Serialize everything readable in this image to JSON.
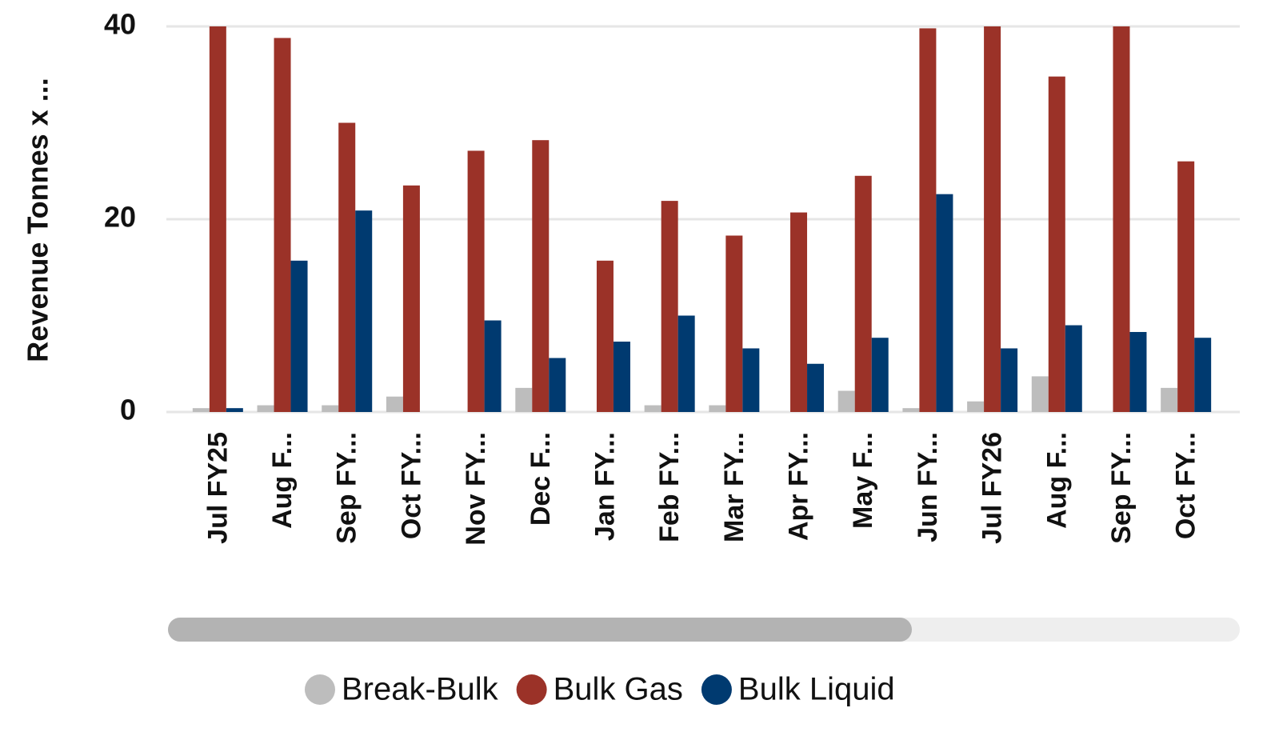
{
  "chart_data": {
    "type": "bar",
    "y_label": "Revenue Tonnes x ...",
    "categories": [
      "Jul FY25",
      "Aug F...",
      "Sep FY...",
      "Oct FY...",
      "Nov FY...",
      "Dec F...",
      "Jan FY...",
      "Feb FY...",
      "Mar FY...",
      "Apr FY...",
      "May F...",
      "Jun FY...",
      "Jul FY26",
      "Aug F...",
      "Sep FY...",
      "Oct FY..."
    ],
    "series": [
      {
        "name": "Break-Bulk",
        "color": "#bdbdbd",
        "values": [
          0.4,
          0.7,
          0.7,
          1.6,
          0,
          2.5,
          0,
          0.7,
          0.7,
          0,
          2.2,
          0.4,
          1.1,
          3.7,
          0,
          2.5
        ]
      },
      {
        "name": "Bulk Gas",
        "color": "#9b3228",
        "values": [
          40,
          38.8,
          30.0,
          23.5,
          27.1,
          28.2,
          15.7,
          21.9,
          18.3,
          20.7,
          24.5,
          39.8,
          40,
          34.8,
          40,
          26.0
        ]
      },
      {
        "name": "Bulk Liquid",
        "color": "#003a70",
        "values": [
          0.4,
          15.7,
          20.9,
          0,
          9.5,
          5.6,
          7.3,
          10.0,
          6.6,
          5.0,
          7.7,
          22.6,
          6.6,
          9.0,
          8.3,
          7.7
        ]
      }
    ],
    "ylim": [
      0,
      40
    ],
    "yticks": [
      0,
      20,
      40
    ],
    "grid": true,
    "legend": "bottom"
  }
}
